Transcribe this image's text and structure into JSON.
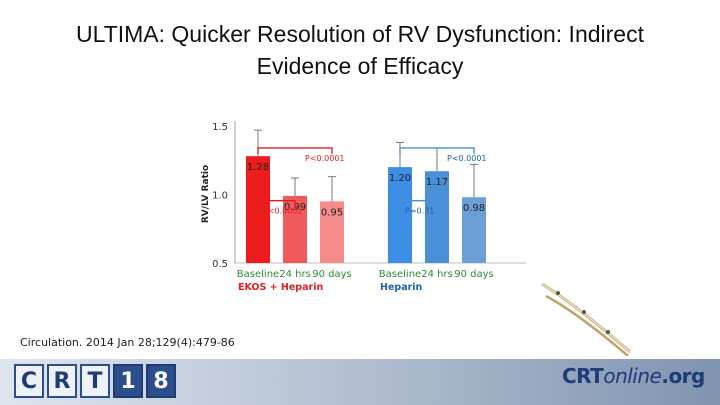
{
  "slide": {
    "title_line1": "ULTIMA: Quicker Resolution of RV Dysfunction: Indirect",
    "title_line2": "Evidence of Efficacy",
    "citation": "Circulation. 2014 Jan 28;129(4):479-86"
  },
  "chart_data": {
    "type": "bar",
    "ylabel": "RV/LV Ratio",
    "ylim": [
      0.5,
      1.5
    ],
    "yticks": [
      "1.5",
      "1.0",
      "0.5"
    ],
    "ytick_values": [
      1.5,
      1.0,
      0.5
    ],
    "groups": [
      {
        "name": "EKOS + Heparin",
        "categories": [
          "Baseline",
          "24 hrs",
          "90 days"
        ],
        "values": [
          1.28,
          0.99,
          0.95
        ],
        "labels": [
          "1.28",
          "0.99",
          "0.95"
        ],
        "colors": [
          "#ee1c1c",
          "#f05a5a",
          "#f48c8c"
        ],
        "error_high": [
          1.47,
          1.12,
          1.13
        ],
        "pvalues": [
          {
            "label": "P<0.0001",
            "from": 0,
            "to": 1,
            "level": 0.955
          },
          {
            "label": "P<0.0001",
            "from": 0,
            "to": 2,
            "level": 1.34
          }
        ],
        "bracket_color": "#e02020",
        "label_color": "#e02020"
      },
      {
        "name": "Heparin",
        "categories": [
          "Baseline",
          "24 hrs",
          "90 days"
        ],
        "values": [
          1.2,
          1.17,
          0.98
        ],
        "labels": [
          "1.20",
          "1.17",
          "0.98"
        ],
        "colors": [
          "#3d8fe6",
          "#4a90d9",
          "#6b9fd6"
        ],
        "error_high": [
          1.38,
          1.34,
          1.22
        ],
        "pvalues": [
          {
            "label": "P=0.31",
            "from": 0,
            "to": 1,
            "level": 0.955
          },
          {
            "label": "P<0.0001",
            "from": 0,
            "to": 2,
            "level": 1.34
          }
        ],
        "bracket_color": "#4a90d9",
        "label_color": "#1f5fae"
      }
    ],
    "xlabel_color": "#2f8a3a"
  },
  "footer": {
    "logo_left": [
      "C",
      "R",
      "T",
      "1",
      "8"
    ],
    "logo_right_1": "CRT",
    "logo_right_2": "online",
    "logo_right_3": ".org"
  }
}
